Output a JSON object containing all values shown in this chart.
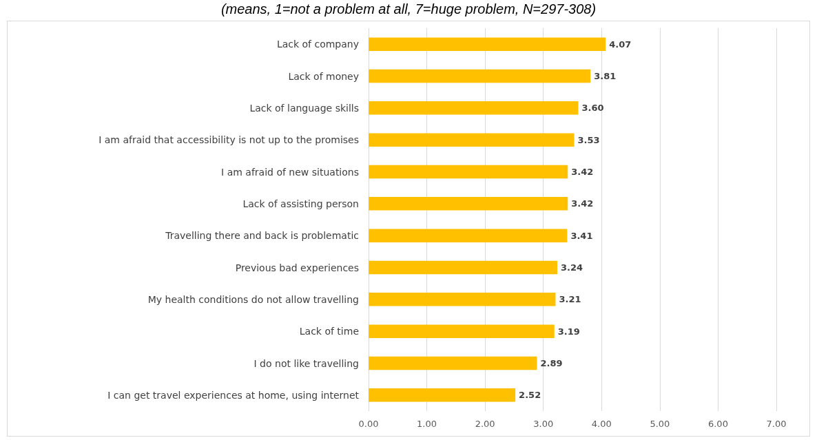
{
  "chart_data": {
    "type": "bar",
    "orientation": "horizontal",
    "subtitle": "(means, 1=not a problem at all, 7=huge problem, N=297-308)",
    "categories": [
      "Lack of company",
      "Lack of money",
      "Lack of language skills",
      "I am afraid that accessibility is not up to the promises",
      "I am afraid of new situations",
      "Lack of assisting person",
      "Travelling there and back is problematic",
      "Previous bad experiences",
      "My health conditions do not allow travelling",
      "Lack of time",
      "I do not like travelling",
      "I can get travel experiences at home, using internet"
    ],
    "values": [
      4.07,
      3.81,
      3.6,
      3.53,
      3.42,
      3.42,
      3.41,
      3.24,
      3.21,
      3.19,
      2.89,
      2.52
    ],
    "value_labels": [
      "4.07",
      "3.81",
      "3.60",
      "3.53",
      "3.42",
      "3.42",
      "3.41",
      "3.24",
      "3.21",
      "3.19",
      "2.89",
      "2.52"
    ],
    "color": "#ffc000",
    "xlim": [
      0,
      7
    ],
    "xticks": [
      {
        "value": 0,
        "label": "0.00"
      },
      {
        "value": 1,
        "label": "1.00"
      },
      {
        "value": 2,
        "label": "2.00"
      },
      {
        "value": 3,
        "label": "3.00"
      },
      {
        "value": 4,
        "label": "4.00"
      },
      {
        "value": 5,
        "label": "5.00"
      },
      {
        "value": 6,
        "label": "6.00"
      },
      {
        "value": 7,
        "label": "7.00"
      }
    ],
    "grid": "x"
  }
}
